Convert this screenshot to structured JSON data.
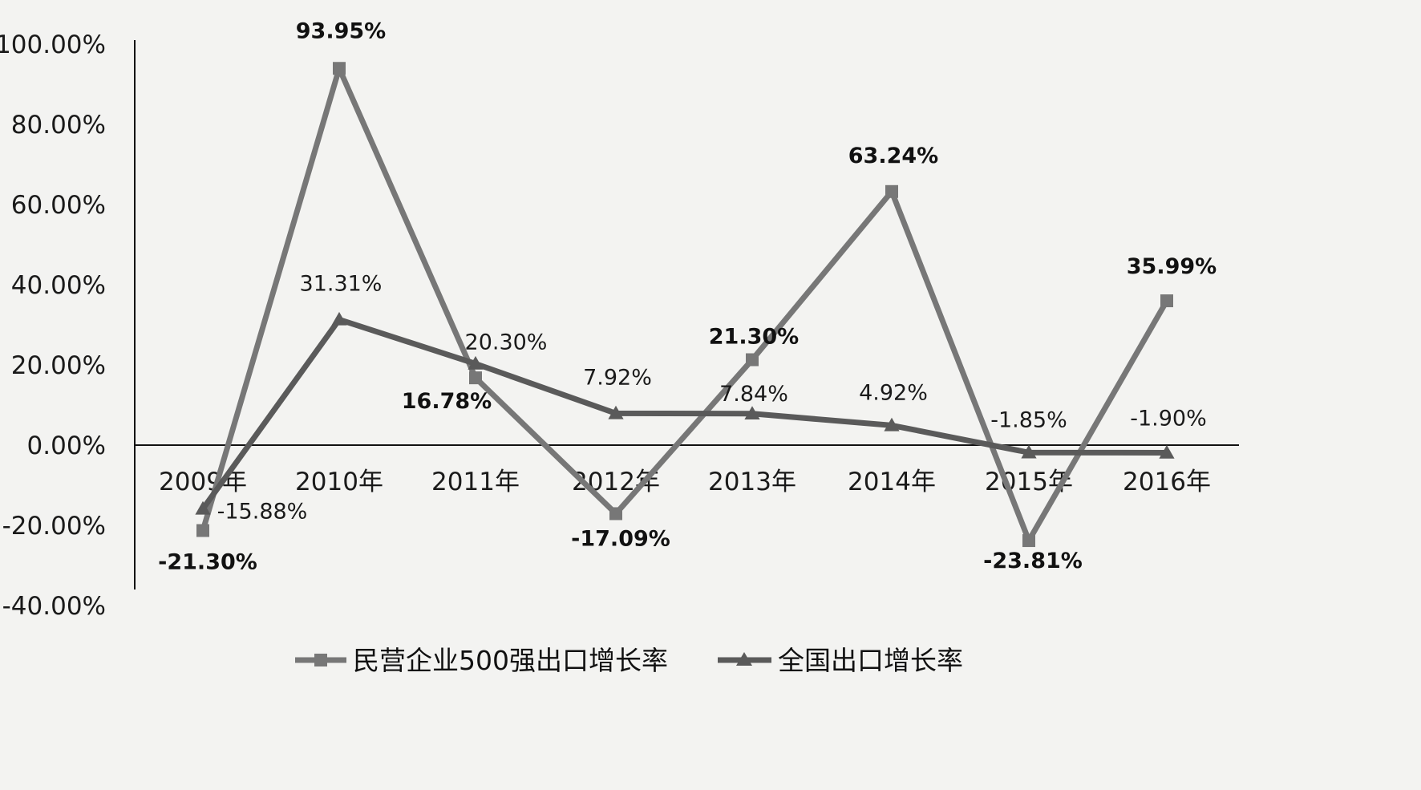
{
  "chart_data": {
    "type": "line",
    "categories": [
      "2009年",
      "2010年",
      "2011年",
      "2012年",
      "2013年",
      "2014年",
      "2015年",
      "2016年"
    ],
    "yticks": [
      "-40.00%",
      "-20.00%",
      "0.00%",
      "20.00%",
      "40.00%",
      "60.00%",
      "80.00%",
      "100.00%"
    ],
    "ylim": [
      -40,
      100
    ],
    "grid": false,
    "legend_position": "bottom",
    "series": [
      {
        "name": "民营企业500强出口增长率",
        "marker": "square",
        "color": "#777777",
        "values": [
          -21.3,
          93.95,
          16.78,
          -17.09,
          21.3,
          63.24,
          -23.81,
          35.99
        ],
        "labels": [
          "-21.30%",
          "93.95%",
          "16.78%",
          "-17.09%",
          "21.30%",
          "63.24%",
          "-23.81%",
          "35.99%"
        ]
      },
      {
        "name": "全国出口增长率",
        "marker": "triangle",
        "color": "#5a5a5a",
        "values": [
          -15.88,
          31.31,
          20.3,
          7.92,
          7.84,
          4.92,
          -1.85,
          -1.9
        ],
        "labels": [
          "-15.88%",
          "31.31%",
          "20.30%",
          "7.92%",
          "7.84%",
          "4.92%",
          "-1.85%",
          "-1.90%"
        ]
      }
    ]
  }
}
